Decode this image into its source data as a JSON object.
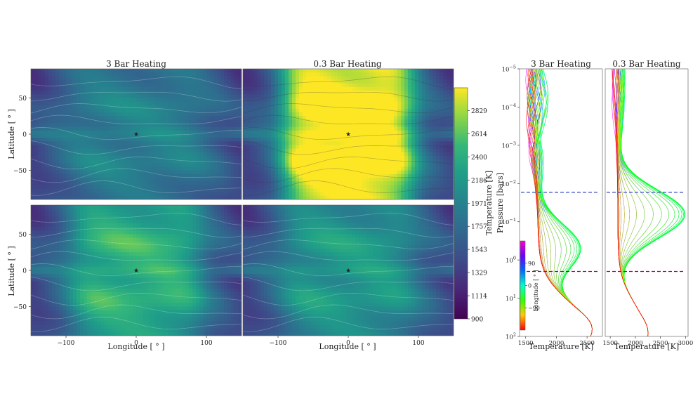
{
  "chart_data": [
    {
      "type": "heatmap",
      "panel": "top-left",
      "title": "3 Bar Heating",
      "xlabel": "",
      "ylabel": "Latitude [$^\\circ$]",
      "ylabel_text": "Latitude [ ° ]",
      "xlim": [
        -150,
        150
      ],
      "ylim": [
        -90,
        90
      ],
      "yticks": [
        50,
        0,
        -50
      ],
      "star": {
        "lon": 0,
        "lat": 0,
        "color": "#1a22cc"
      },
      "hot_fraction": 0.15
    },
    {
      "type": "heatmap",
      "panel": "top-right",
      "title": "0.3 Bar Heating",
      "xlim": [
        -150,
        150
      ],
      "ylim": [
        -90,
        90
      ],
      "star": {
        "lon": 0,
        "lat": 0,
        "color": "#1a22cc"
      },
      "hot_fraction": 0.95
    },
    {
      "type": "heatmap",
      "panel": "bottom-left",
      "xlabel": "Longitude [ ° ]",
      "ylabel": "Latitude [ ° ]",
      "xlim": [
        -150,
        150
      ],
      "ylim": [
        -90,
        90
      ],
      "xticks": [
        -100,
        0,
        100
      ],
      "yticks": [
        50,
        0,
        -50
      ],
      "star": {
        "lon": 0,
        "lat": 0,
        "color": "#aa2299"
      },
      "hot_fraction": 0.45
    },
    {
      "type": "heatmap",
      "panel": "bottom-right",
      "xlabel": "Longitude [ ° ]",
      "xlim": [
        -150,
        150
      ],
      "ylim": [
        -90,
        90
      ],
      "xticks": [
        -100,
        0,
        100
      ],
      "star": {
        "lon": 0,
        "lat": 0,
        "color": "#aa2299"
      },
      "hot_fraction": 0.3
    },
    {
      "type": "colorbar",
      "label": "Temperature [K]",
      "ticks": [
        2829,
        2614,
        2400,
        2186,
        1971,
        1757,
        1543,
        1329,
        1114,
        900
      ],
      "range": [
        900,
        3040
      ],
      "colormap": "viridis"
    },
    {
      "type": "line",
      "panel": "profile-left",
      "title": "3 Bar Heating",
      "xlabel": "Temperature [K]",
      "ylabel": "Pressure [bars]",
      "xlim": [
        1400,
        2750
      ],
      "ylim_log": [
        -5,
        2
      ],
      "xticks": [
        1500,
        2000,
        2500
      ],
      "yticks": [
        "10^{-5}",
        "10^{-4}",
        "10^{-3}",
        "10^{-2}",
        "10^{-1}",
        "10^{0}",
        "10^{1}",
        "10^{2}"
      ],
      "yticks_text": [
        {
          "base": "10",
          "exp": "−5",
          "logp": -5
        },
        {
          "base": "10",
          "exp": "−4",
          "logp": -4
        },
        {
          "base": "10",
          "exp": "−3",
          "logp": -3
        },
        {
          "base": "10",
          "exp": "−2",
          "logp": -2
        },
        {
          "base": "10",
          "exp": "−1",
          "logp": -1
        },
        {
          "base": "10",
          "exp": "0",
          "logp": 0
        },
        {
          "base": "10",
          "exp": "1",
          "logp": 1
        },
        {
          "base": "10",
          "exp": "2",
          "logp": 2
        }
      ],
      "hlines": [
        {
          "pressure": 0.017,
          "color": "#2233bb"
        },
        {
          "pressure": 2.0,
          "color": "#990077"
        }
      ]
    },
    {
      "type": "line",
      "panel": "profile-right",
      "title": "0.3 Bar Heating",
      "xlabel": "Temperature [K]",
      "xlim": [
        1400,
        3050
      ],
      "ylim_log": [
        -5,
        2
      ],
      "xticks": [
        1500,
        2000,
        2500,
        3000
      ],
      "hlines": [
        {
          "pressure": 0.017,
          "color": "#2233bb"
        },
        {
          "pressure": 2.0,
          "color": "#990077"
        }
      ]
    },
    {
      "type": "colorbar",
      "label": "Longitude [ ° ]",
      "ticks": [
        90,
        0,
        -90
      ],
      "ticks_text": [
        "90",
        "0",
        "−90"
      ],
      "colormap": "hsv"
    }
  ]
}
